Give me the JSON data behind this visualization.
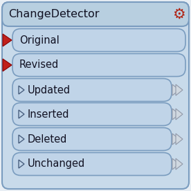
{
  "title": "ChangeDetector",
  "title_fontsize": 11.5,
  "outer_facecolor": "#c8daea",
  "outer_edgecolor": "#7a9cbf",
  "header_facecolor": "#b8cfe0",
  "header_edgecolor": "#7a9cbf",
  "port_facecolor": "#c0d4e8",
  "port_edgecolor": "#7a9cbf",
  "input_ports": [
    "Original",
    "Revised"
  ],
  "output_ports": [
    "Updated",
    "Inserted",
    "Deleted",
    "Unchanged"
  ],
  "port_fontsize": 10.5,
  "red_arrow": "#c0201a",
  "red_arrow_dark": "#8b0000",
  "gray_arrow_fill": "#d0d8e0",
  "gray_arrow_edge": "#9098a8",
  "gear_color": "#b02010",
  "text_color": "#111122",
  "figsize": [
    2.76,
    2.76
  ],
  "dpi": 100
}
